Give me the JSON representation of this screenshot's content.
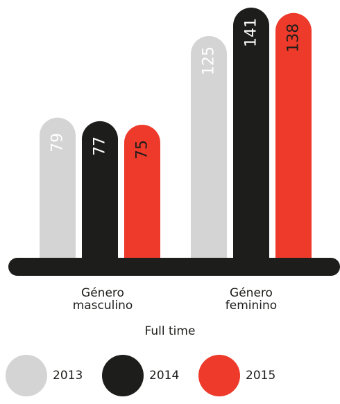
{
  "chart_data": {
    "type": "bar",
    "categories": [
      "Género\nmasculino",
      "Género\nfeminino"
    ],
    "series": [
      {
        "name": "2013",
        "values": [
          79,
          125
        ],
        "color": "#d4d4d4"
      },
      {
        "name": "2014",
        "values": [
          77,
          141
        ],
        "color": "#1d1d1b"
      },
      {
        "name": "2015",
        "values": [
          75,
          138
        ],
        "color": "#ee3a2b"
      }
    ],
    "xlabel": "Full time",
    "legend_position": "bottom",
    "value_label_colors": [
      "#ffffff",
      "#ffffff",
      "#1d1d1b"
    ],
    "grid": false
  }
}
